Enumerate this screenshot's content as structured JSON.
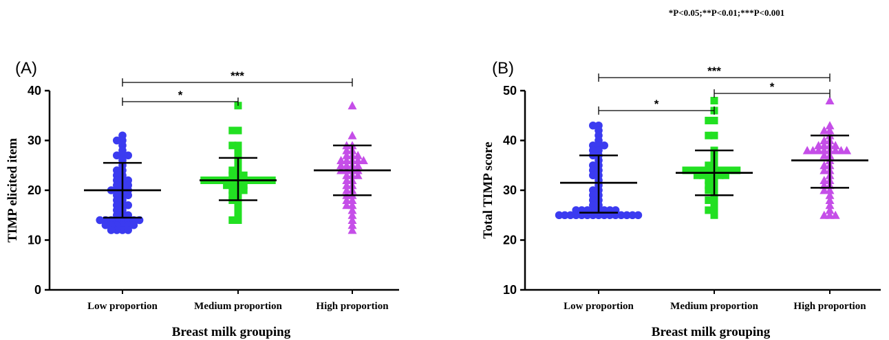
{
  "significance_note": "*P<0.05;**P<0.01;***P<0.001",
  "colors": {
    "low": "#3b3bf0",
    "medium": "#22e022",
    "high": "#c54ee8",
    "axis": "#000000"
  },
  "chart_data": [
    {
      "panel_label": "(A)",
      "type": "scatter",
      "title": "",
      "xlabel": "Breast milk grouping",
      "ylabel": "TIMP elicited item",
      "ylim": [
        0,
        40
      ],
      "yticks": [
        0,
        10,
        20,
        30,
        40
      ],
      "categories": [
        "Low proportion",
        "Medium proportion",
        "High proportion"
      ],
      "series": [
        {
          "color": "low",
          "marker": "circle",
          "mean": 20,
          "sd_low": 14.5,
          "sd_high": 25.5,
          "values": [
            31,
            30,
            30,
            29,
            28,
            27,
            27,
            27,
            26,
            25,
            24,
            24,
            23,
            23,
            22,
            22,
            22,
            21,
            21,
            21,
            20,
            20,
            20,
            20,
            19,
            19,
            19,
            18,
            18,
            17,
            17,
            17,
            16,
            16,
            15,
            15,
            15,
            14,
            14,
            14,
            14,
            14,
            14,
            14,
            14,
            13,
            13,
            13,
            13,
            13,
            13,
            12,
            12,
            12,
            12
          ]
        },
        {
          "color": "medium",
          "marker": "square",
          "mean": 22,
          "sd_low": 18,
          "sd_high": 26.5,
          "values": [
            37,
            32,
            32,
            29,
            29,
            28,
            27,
            26,
            25,
            24,
            24,
            23,
            23,
            23,
            22,
            22,
            22,
            22,
            22,
            22,
            22,
            22,
            22,
            22,
            22,
            22,
            22,
            21,
            21,
            21,
            21,
            20,
            20,
            20,
            19,
            19,
            18,
            18,
            17,
            16,
            15,
            14,
            14
          ]
        },
        {
          "color": "high",
          "marker": "triangle",
          "mean": 24,
          "sd_low": 19,
          "sd_high": 29,
          "values": [
            37,
            31,
            29,
            29,
            28,
            28,
            27,
            27,
            27,
            26,
            26,
            26,
            26,
            26,
            25,
            25,
            25,
            25,
            24,
            24,
            24,
            24,
            23,
            23,
            23,
            22,
            22,
            21,
            21,
            20,
            20,
            19,
            19,
            18,
            18,
            17,
            17,
            16,
            15,
            14,
            13,
            12
          ]
        }
      ],
      "brackets": [
        {
          "from": 0,
          "to": 2,
          "level": 2,
          "label": "***"
        },
        {
          "from": 0,
          "to": 1,
          "level": 1,
          "label": "*"
        }
      ]
    },
    {
      "panel_label": "(B)",
      "type": "scatter",
      "title": "",
      "xlabel": "Breast milk grouping",
      "ylabel": "Total TIMP score",
      "ylim": [
        10,
        50
      ],
      "yticks": [
        10,
        20,
        30,
        40,
        50
      ],
      "categories": [
        "Low proportion",
        "Medium proportion",
        "High proportion"
      ],
      "series": [
        {
          "color": "low",
          "marker": "circle",
          "mean": 31.5,
          "sd_low": 25.5,
          "sd_high": 37,
          "values": [
            43,
            43,
            42,
            41,
            40,
            39,
            39,
            39,
            38,
            38,
            37,
            37,
            36,
            35,
            35,
            34,
            34,
            33,
            33,
            32,
            31,
            30,
            30,
            29,
            29,
            28,
            28,
            27,
            27,
            26,
            26,
            26,
            26,
            26,
            26,
            26,
            26,
            25,
            25,
            25,
            25,
            25,
            25,
            25,
            25,
            25,
            25,
            25,
            25,
            25,
            25,
            25
          ]
        },
        {
          "color": "medium",
          "marker": "square",
          "mean": 33.5,
          "sd_low": 29,
          "sd_high": 38,
          "values": [
            48,
            46,
            44,
            44,
            41,
            41,
            38,
            37,
            36,
            35,
            35,
            34,
            34,
            34,
            34,
            34,
            34,
            34,
            34,
            34,
            34,
            33,
            33,
            33,
            33,
            33,
            33,
            32,
            32,
            31,
            31,
            30,
            30,
            29,
            28,
            28,
            27,
            26,
            26,
            25
          ]
        },
        {
          "color": "high",
          "marker": "triangle",
          "mean": 36,
          "sd_low": 30.5,
          "sd_high": 41,
          "values": [
            48,
            43,
            42,
            42,
            41,
            40,
            40,
            39,
            39,
            39,
            39,
            38,
            38,
            38,
            38,
            38,
            38,
            38,
            38,
            37,
            37,
            36,
            35,
            35,
            34,
            34,
            33,
            32,
            32,
            31,
            31,
            30,
            30,
            29,
            28,
            27,
            26,
            25,
            25,
            25
          ]
        }
      ],
      "brackets": [
        {
          "from": 0,
          "to": 2,
          "level": 3,
          "label": "***"
        },
        {
          "from": 1,
          "to": 2,
          "level": 2,
          "label": "*"
        },
        {
          "from": 0,
          "to": 1,
          "level": 1,
          "label": "*"
        }
      ]
    }
  ]
}
